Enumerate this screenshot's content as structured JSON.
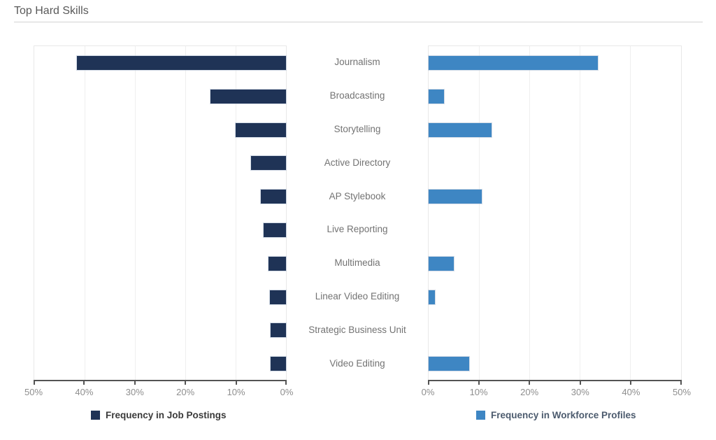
{
  "page": {
    "title": "Top Hard Skills"
  },
  "chart_data": {
    "type": "bar",
    "subtype": "diverging-horizontal-tornado",
    "title": "Top Hard Skills",
    "categories": [
      "Journalism",
      "Broadcasting",
      "Storytelling",
      "Active Directory",
      "AP Stylebook",
      "Live Reporting",
      "Multimedia",
      "Linear Video Editing",
      "Strategic Business Unit",
      "Video Editing"
    ],
    "series": [
      {
        "name": "Frequency in Job Postings",
        "side": "left",
        "color": "#1f3356",
        "legend_text_color": "#3a3a3a",
        "values": [
          41.5,
          15,
          10,
          7,
          5,
          4.5,
          3.5,
          3.2,
          3,
          3
        ]
      },
      {
        "name": "Frequency in Workforce Profiles",
        "side": "right",
        "color": "#3e86c3",
        "legend_text_color": "#4c5b6e",
        "values": [
          33.5,
          3,
          12.5,
          0,
          10.5,
          0,
          5,
          1.2,
          0,
          8
        ]
      }
    ],
    "axes": {
      "left_ticks": [
        "50%",
        "40%",
        "30%",
        "20%",
        "10%",
        "0%"
      ],
      "right_ticks": [
        "0%",
        "10%",
        "20%",
        "30%",
        "40%",
        "50%"
      ],
      "max_percent": 50,
      "grid": true,
      "unit": "%"
    },
    "legend_position": "bottom"
  },
  "colors": {
    "title_text": "#595959",
    "category_text": "#737373",
    "axis_tick_text": "#8e8e8e",
    "axis_line": "#545454",
    "gridline": "#efefef",
    "divider": "#d2d2d2"
  }
}
